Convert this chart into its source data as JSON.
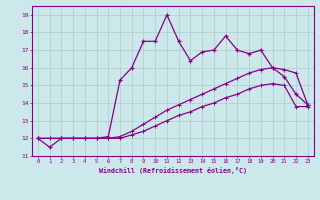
{
  "xlabel": "Windchill (Refroidissement éolien,°C)",
  "background_color": "#cce8ea",
  "line_color": "#880088",
  "grid_color": "#aacccc",
  "x_hours": [
    0,
    1,
    2,
    3,
    4,
    5,
    6,
    7,
    8,
    9,
    10,
    11,
    12,
    13,
    14,
    15,
    16,
    17,
    18,
    19,
    20,
    21,
    22,
    23
  ],
  "y_main": [
    12,
    11.5,
    12,
    12,
    12,
    12,
    12.1,
    15.3,
    16.0,
    17.5,
    17.5,
    19.0,
    17.5,
    16.4,
    16.9,
    17.0,
    17.8,
    17.0,
    16.8,
    17.0,
    16.0,
    15.5,
    14.5,
    13.9
  ],
  "y_line2": [
    12,
    12,
    12,
    12,
    12,
    12,
    12,
    12.1,
    12.4,
    12.8,
    13.2,
    13.6,
    13.9,
    14.2,
    14.5,
    14.8,
    15.1,
    15.4,
    15.7,
    15.9,
    16.0,
    15.9,
    15.7,
    13.9
  ],
  "y_line3": [
    12,
    12,
    12,
    12,
    12,
    12,
    12,
    12,
    12.2,
    12.4,
    12.7,
    13.0,
    13.3,
    13.5,
    13.8,
    14.0,
    14.3,
    14.5,
    14.8,
    15.0,
    15.1,
    15.0,
    13.8,
    13.8
  ],
  "ylim": [
    11,
    19.5
  ],
  "xlim": [
    -0.5,
    23.5
  ],
  "yticks": [
    11,
    12,
    13,
    14,
    15,
    16,
    17,
    18,
    19
  ],
  "xticks": [
    0,
    1,
    2,
    3,
    4,
    5,
    6,
    7,
    8,
    9,
    10,
    11,
    12,
    13,
    14,
    15,
    16,
    17,
    18,
    19,
    20,
    21,
    22,
    23
  ]
}
